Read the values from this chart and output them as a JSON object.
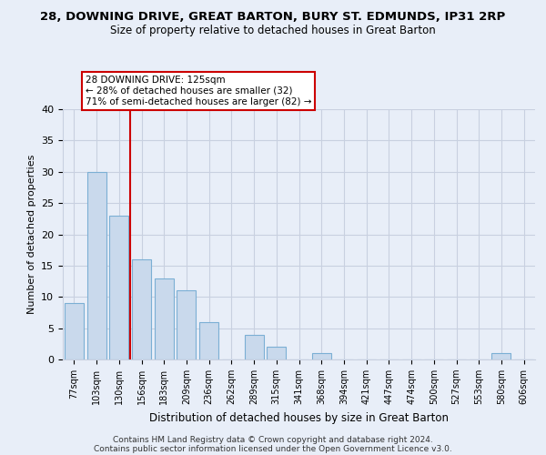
{
  "title": "28, DOWNING DRIVE, GREAT BARTON, BURY ST. EDMUNDS, IP31 2RP",
  "subtitle": "Size of property relative to detached houses in Great Barton",
  "xlabel": "Distribution of detached houses by size in Great Barton",
  "ylabel": "Number of detached properties",
  "bar_labels": [
    "77sqm",
    "103sqm",
    "130sqm",
    "156sqm",
    "183sqm",
    "209sqm",
    "236sqm",
    "262sqm",
    "289sqm",
    "315sqm",
    "341sqm",
    "368sqm",
    "394sqm",
    "421sqm",
    "447sqm",
    "474sqm",
    "500sqm",
    "527sqm",
    "553sqm",
    "580sqm",
    "606sqm"
  ],
  "bar_values": [
    9,
    30,
    23,
    16,
    13,
    11,
    6,
    0,
    4,
    2,
    0,
    1,
    0,
    0,
    0,
    0,
    0,
    0,
    0,
    1,
    0
  ],
  "bar_facecolor": "#c9d9ec",
  "bar_edgecolor": "#7bafd4",
  "vline_bar_index": 2,
  "vline_color": "#cc0000",
  "annotation_title": "28 DOWNING DRIVE: 125sqm",
  "annotation_line1": "← 28% of detached houses are smaller (32)",
  "annotation_line2": "71% of semi-detached houses are larger (82) →",
  "annotation_box_facecolor": "#ffffff",
  "annotation_box_edgecolor": "#cc0000",
  "ylim": [
    0,
    40
  ],
  "yticks": [
    0,
    5,
    10,
    15,
    20,
    25,
    30,
    35,
    40
  ],
  "background_color": "#e8eef8",
  "grid_color": "#c8d0e0",
  "footer_line1": "Contains HM Land Registry data © Crown copyright and database right 2024.",
  "footer_line2": "Contains public sector information licensed under the Open Government Licence v3.0."
}
